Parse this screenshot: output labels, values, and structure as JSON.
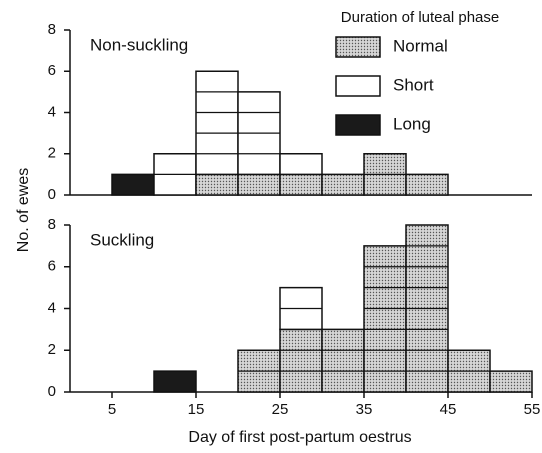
{
  "chart_data": [
    {
      "type": "histogram",
      "title": "Non-suckling",
      "ylabel": "No. of ewes",
      "legend_title": "Duration of luteal phase",
      "legend": "upper right",
      "bins": [
        5,
        10,
        15,
        20,
        25,
        30,
        35,
        40,
        45,
        50,
        55
      ],
      "series": [
        {
          "name": "Normal",
          "color": "#c8c8c8",
          "pattern": "dots",
          "values": [
            0,
            0,
            1,
            1,
            1,
            1,
            2,
            1,
            0,
            0
          ]
        },
        {
          "name": "Short",
          "color": "#ffffff",
          "values": [
            0,
            2,
            5,
            4,
            1,
            0,
            0,
            0,
            0,
            0
          ]
        },
        {
          "name": "Long",
          "color": "#1a1a1a",
          "values": [
            1,
            0,
            0,
            0,
            0,
            0,
            0,
            0,
            0,
            0
          ]
        }
      ],
      "xlim": [
        0,
        55
      ],
      "ylim": [
        0,
        8
      ],
      "yticks": [
        0,
        2,
        4,
        6,
        8
      ]
    },
    {
      "type": "histogram",
      "title": "Suckling",
      "xlabel": "Day of first post-partum oestrus",
      "bins": [
        5,
        10,
        15,
        20,
        25,
        30,
        35,
        40,
        45,
        50,
        55
      ],
      "series": [
        {
          "name": "Normal",
          "color": "#c8c8c8",
          "pattern": "dots",
          "values": [
            0,
            0,
            0,
            2,
            3,
            3,
            7,
            8,
            2,
            1
          ]
        },
        {
          "name": "Short",
          "color": "#ffffff",
          "values": [
            0,
            0,
            0,
            0,
            2,
            0,
            0,
            0,
            0,
            0
          ]
        },
        {
          "name": "Long",
          "color": "#1a1a1a",
          "values": [
            0,
            1,
            0,
            0,
            0,
            0,
            0,
            0,
            0,
            0
          ]
        }
      ],
      "xlim": [
        0,
        55
      ],
      "ylim": [
        0,
        8
      ],
      "yticks": [
        0,
        2,
        4,
        6,
        8
      ],
      "xticks": [
        5,
        15,
        25,
        35,
        45,
        55
      ]
    }
  ]
}
